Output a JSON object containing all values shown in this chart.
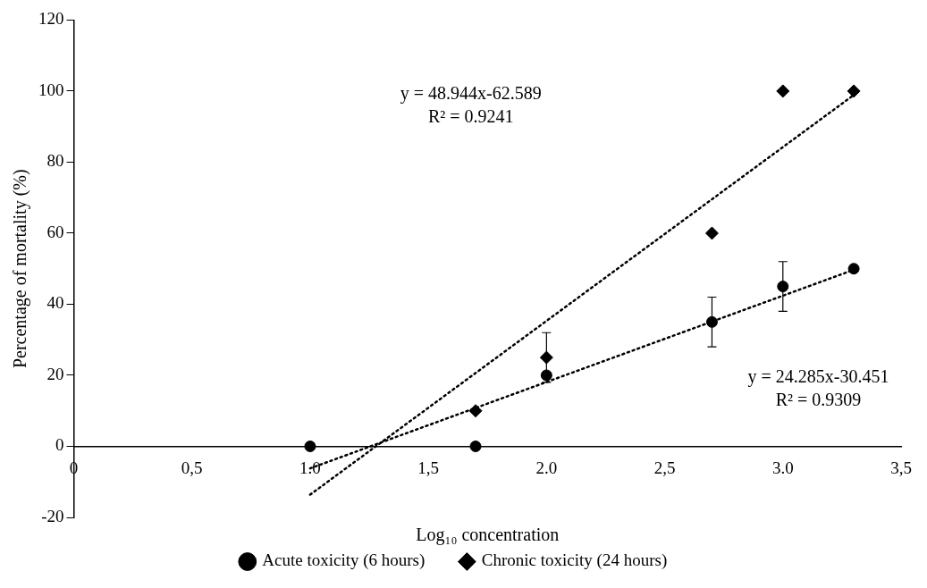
{
  "chart_data": {
    "type": "scatter",
    "xlabel": "Log₁₀ concentration",
    "ylabel": "Percentage of mortality (%)",
    "xlim": [
      0,
      3.5
    ],
    "ylim": [
      -20,
      120
    ],
    "xticks": [
      0,
      {
        "value": 0.5,
        "label": "0,5"
      },
      {
        "value": 1,
        "label": "1.0"
      },
      {
        "value": 1.5,
        "label": "1,5"
      },
      {
        "value": 2,
        "label": "2.0"
      },
      {
        "value": 2.5,
        "label": "2,5"
      },
      {
        "value": 3,
        "label": "3.0"
      },
      {
        "value": 3.5,
        "label": "3,5"
      }
    ],
    "yticks": [
      -20,
      0,
      20,
      40,
      60,
      80,
      100,
      120
    ],
    "grid": false,
    "legend": "bottom",
    "series": [
      {
        "name": "Acute toxicity (6 hours)",
        "color": "#000000",
        "marker": "circle",
        "x": [
          1.0,
          1.7,
          2.0,
          2.7,
          3.0,
          3.3
        ],
        "values": [
          0,
          0,
          20,
          35,
          45,
          50
        ],
        "errors": [
          null,
          null,
          null,
          7,
          7,
          null
        ]
      },
      {
        "name": "Chronic toxicity (24 hours)",
        "color": "#000000",
        "marker": "diamond",
        "x": [
          1.7,
          2.0,
          2.7,
          3.0,
          3.3
        ],
        "values": [
          10,
          25,
          60,
          100,
          100
        ],
        "errors": [
          null,
          7,
          null,
          null,
          null
        ]
      },
      {
        "type": "line",
        "color": "#000000",
        "marker": "none",
        "line_style": "dotted",
        "x": [
          1.0,
          3.3
        ],
        "values": [
          -6.2,
          49.7
        ]
      },
      {
        "type": "line",
        "color": "#000000",
        "marker": "none",
        "line_style": "dotted",
        "x": [
          1.0,
          3.3
        ],
        "values": [
          -13.6,
          98.9
        ]
      }
    ],
    "annotations": [
      "y = 48.944x-62.589\nR² = 0.9241",
      "y = 24.285x-30.451\nR² = 0.9309"
    ]
  }
}
